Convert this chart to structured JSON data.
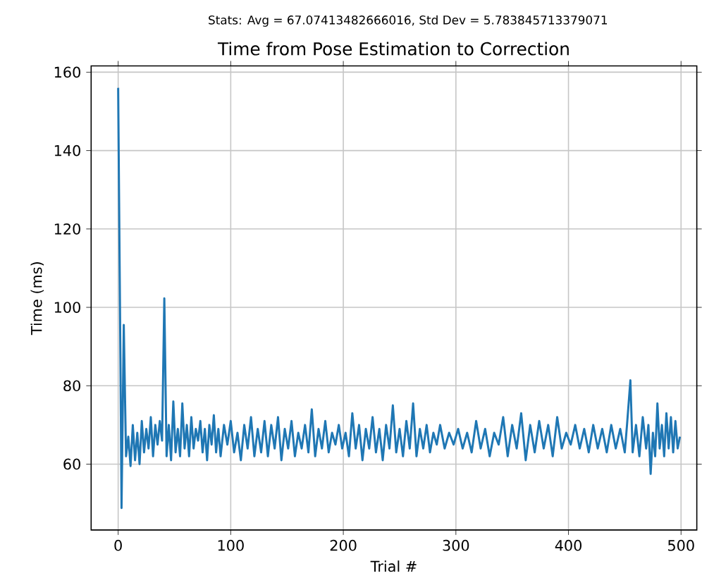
{
  "chart_data": {
    "type": "line",
    "title": "Time from Pose Estimation to Correction",
    "subtitle": "Stats: Avg = 67.07413482666016, Std Dev = 5.783845713379071",
    "xlabel": "Trial #",
    "ylabel": "Time (ms)",
    "xlim": [
      -24,
      514
    ],
    "ylim": [
      43.2,
      161.6
    ],
    "xticks": [
      0,
      100,
      200,
      300,
      400,
      500
    ],
    "yticks": [
      60,
      80,
      100,
      120,
      140,
      160
    ],
    "grid": true,
    "x": [
      0,
      2,
      3,
      5,
      7,
      9,
      11,
      13,
      15,
      17,
      19,
      21,
      23,
      25,
      27,
      29,
      31,
      33,
      35,
      37,
      39,
      41,
      43,
      45,
      47,
      49,
      51,
      53,
      55,
      57,
      59,
      61,
      63,
      65,
      67,
      69,
      71,
      73,
      75,
      77,
      79,
      81,
      83,
      85,
      87,
      89,
      91,
      94,
      97,
      100,
      103,
      106,
      109,
      112,
      115,
      118,
      121,
      124,
      127,
      130,
      133,
      136,
      139,
      142,
      145,
      148,
      151,
      154,
      157,
      160,
      163,
      166,
      169,
      172,
      175,
      178,
      181,
      184,
      187,
      190,
      193,
      196,
      199,
      202,
      205,
      208,
      211,
      214,
      217,
      220,
      223,
      226,
      229,
      232,
      235,
      238,
      241,
      244,
      247,
      250,
      253,
      256,
      259,
      262,
      265,
      268,
      271,
      274,
      277,
      280,
      283,
      286,
      290,
      294,
      298,
      302,
      306,
      310,
      314,
      318,
      322,
      326,
      330,
      334,
      338,
      342,
      346,
      350,
      354,
      358,
      362,
      366,
      370,
      374,
      378,
      382,
      386,
      390,
      394,
      398,
      402,
      406,
      410,
      414,
      418,
      422,
      426,
      430,
      434,
      438,
      442,
      446,
      450,
      452,
      455,
      457,
      460,
      463,
      466,
      469,
      471,
      473,
      475,
      477,
      479,
      481,
      483,
      485,
      487,
      489,
      491,
      493,
      495,
      497,
      499
    ],
    "series": [
      {
        "color": "#1f77b4",
        "values": [
          156,
          87,
          48.8,
          95.5,
          62,
          67,
          59.5,
          70,
          61,
          68,
          60,
          71,
          63,
          69,
          64,
          72,
          62,
          70,
          65,
          71,
          66,
          102.3,
          62,
          70,
          61,
          76,
          63,
          69,
          62,
          75.5,
          64,
          70,
          62,
          72,
          64,
          69,
          66,
          71,
          63,
          69,
          61,
          70,
          65,
          72.5,
          63,
          69,
          62,
          70,
          65,
          71,
          63,
          68,
          61,
          70,
          64,
          72,
          62,
          69,
          63,
          71,
          62,
          70,
          64,
          72,
          61,
          69,
          64,
          71,
          62,
          68,
          64,
          70,
          63,
          74,
          62,
          69,
          64,
          71,
          63,
          68,
          65,
          70,
          64,
          68,
          62,
          73,
          64,
          70,
          61,
          69,
          64,
          72,
          63,
          69,
          61,
          70,
          64,
          75,
          63,
          69,
          62,
          71,
          64,
          75.5,
          62,
          69,
          64,
          70,
          63,
          68,
          65,
          70,
          64,
          68,
          65,
          69,
          64,
          68,
          63,
          71,
          64,
          69,
          62,
          68,
          65,
          72,
          62,
          70,
          64,
          73,
          61,
          70,
          63,
          71,
          64,
          70,
          62,
          72,
          64,
          68,
          65,
          70,
          64,
          69,
          63,
          70,
          64,
          69,
          63,
          70,
          64,
          69,
          63,
          70,
          81.4,
          63,
          70,
          62,
          72,
          64,
          70,
          57.5,
          68,
          62,
          75.5,
          64,
          70,
          62,
          73,
          64,
          72,
          63,
          71,
          64,
          67
        ]
      }
    ]
  }
}
